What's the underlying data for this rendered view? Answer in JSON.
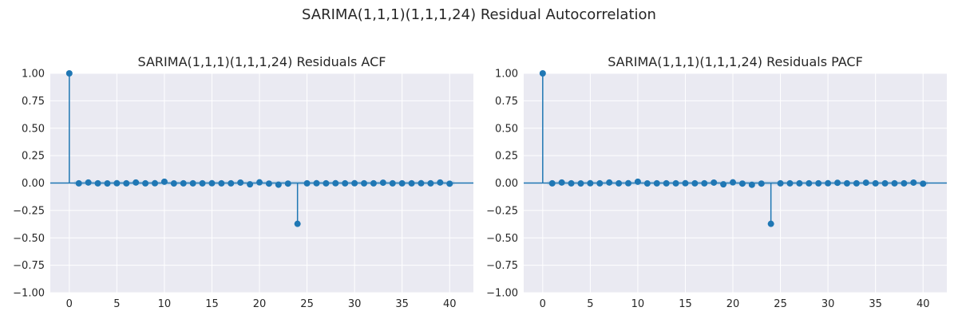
{
  "figure": {
    "suptitle": "SARIMA(1,1,1)(1,1,1,24) Residual Autocorrelation"
  },
  "theme": {
    "background": "#eaeaf2",
    "grid": "#ffffff",
    "stem": "#1f77b4",
    "band": "#b8cfe6"
  },
  "chart_data": [
    {
      "type": "stem",
      "title": "SARIMA(1,1,1)(1,1,1,24) Residuals ACF",
      "xlim": [
        -2,
        42.5
      ],
      "ylim": [
        -1.0,
        1.0
      ],
      "xticks": [
        0,
        5,
        10,
        15,
        20,
        25,
        30,
        35,
        40
      ],
      "yticks": [
        1.0,
        0.75,
        0.5,
        0.25,
        0.0,
        -0.25,
        -0.5,
        -0.75,
        -1.0
      ],
      "ytick_labels": [
        "1.00",
        "0.75",
        "0.50",
        "0.25",
        "0.00",
        "−0.25",
        "−0.50",
        "−0.75",
        "−1.00"
      ],
      "grid": true,
      "confidence_band": 0.02,
      "x": [
        0,
        1,
        2,
        3,
        4,
        5,
        6,
        7,
        8,
        9,
        10,
        11,
        12,
        13,
        14,
        15,
        16,
        17,
        18,
        19,
        20,
        21,
        22,
        23,
        24,
        25,
        26,
        27,
        28,
        29,
        30,
        31,
        32,
        33,
        34,
        35,
        36,
        37,
        38,
        39,
        40
      ],
      "values": [
        1.0,
        -0.003,
        0.005,
        -0.003,
        -0.004,
        -0.002,
        -0.003,
        0.005,
        -0.003,
        -0.002,
        0.012,
        -0.004,
        -0.003,
        -0.003,
        -0.003,
        -0.002,
        -0.003,
        -0.003,
        0.004,
        -0.012,
        0.006,
        -0.005,
        -0.015,
        -0.005,
        -0.372,
        -0.003,
        -0.002,
        -0.003,
        -0.002,
        -0.003,
        -0.002,
        -0.003,
        -0.003,
        0.003,
        -0.003,
        -0.003,
        -0.003,
        -0.002,
        -0.003,
        0.005,
        -0.006
      ]
    },
    {
      "type": "stem",
      "title": "SARIMA(1,1,1)(1,1,1,24) Residuals PACF",
      "xlim": [
        -2,
        42.5
      ],
      "ylim": [
        -1.0,
        1.0
      ],
      "xticks": [
        0,
        5,
        10,
        15,
        20,
        25,
        30,
        35,
        40
      ],
      "yticks": [
        1.0,
        0.75,
        0.5,
        0.25,
        0.0,
        -0.25,
        -0.5,
        -0.75,
        -1.0
      ],
      "ytick_labels": [
        "1.00",
        "0.75",
        "0.50",
        "0.25",
        "0.00",
        "−0.25",
        "−0.50",
        "−0.75",
        "−1.00"
      ],
      "grid": true,
      "confidence_band": 0.02,
      "x": [
        0,
        1,
        2,
        3,
        4,
        5,
        6,
        7,
        8,
        9,
        10,
        11,
        12,
        13,
        14,
        15,
        16,
        17,
        18,
        19,
        20,
        21,
        22,
        23,
        24,
        25,
        26,
        27,
        28,
        29,
        30,
        31,
        32,
        33,
        34,
        35,
        36,
        37,
        38,
        39,
        40
      ],
      "values": [
        1.0,
        -0.003,
        0.005,
        -0.003,
        -0.004,
        -0.002,
        -0.003,
        0.005,
        -0.003,
        -0.002,
        0.012,
        -0.004,
        -0.003,
        -0.003,
        -0.003,
        -0.002,
        -0.003,
        -0.003,
        0.004,
        -0.012,
        0.006,
        -0.005,
        -0.016,
        -0.005,
        -0.372,
        -0.003,
        -0.003,
        -0.003,
        -0.003,
        -0.003,
        -0.002,
        0.002,
        -0.003,
        -0.003,
        0.003,
        -0.003,
        -0.003,
        -0.003,
        -0.003,
        0.004,
        -0.006
      ]
    }
  ]
}
